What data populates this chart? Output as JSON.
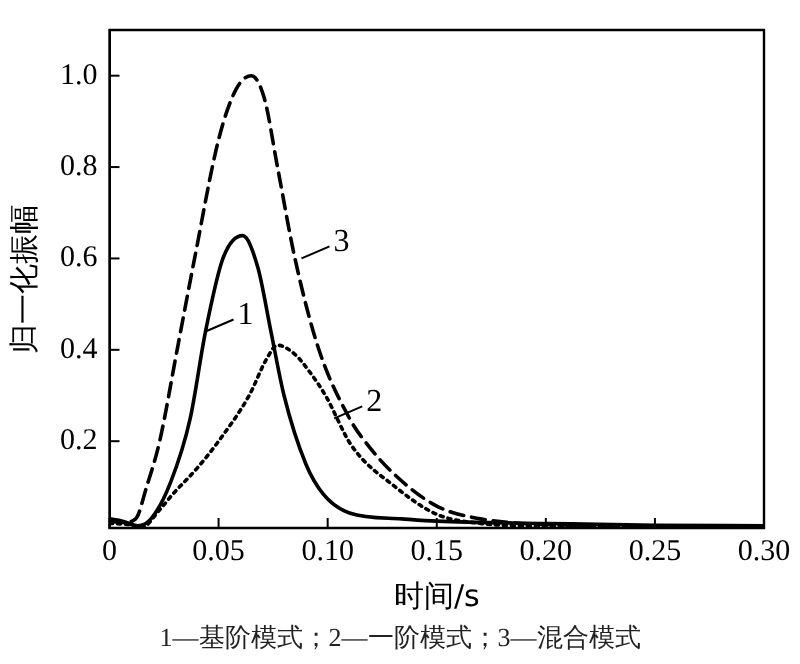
{
  "chart_data": {
    "type": "line",
    "xlabel": "时间/s",
    "ylabel": "归一化振幅",
    "xlim": [
      0,
      0.3
    ],
    "ylim": [
      0.01,
      1.1
    ],
    "xticks": [
      0,
      0.05,
      {
        "value": 0.1,
        "label": "0.10"
      },
      0.15,
      {
        "value": 0.2,
        "label": "0.20"
      },
      0.25,
      {
        "value": 0.3,
        "label": "0.30"
      }
    ],
    "yticks": [
      0.2,
      0.4,
      0.6,
      0.8,
      {
        "value": 1,
        "label": "1.0"
      }
    ],
    "grid": false,
    "legend": false,
    "marker": "none",
    "series": [
      {
        "color": "#000000",
        "line_style": "solid",
        "x": [
          0,
          0.006,
          0.013,
          0.019,
          0.028,
          0.037,
          0.044,
          0.052,
          0.061,
          0.068,
          0.074,
          0.08,
          0.09,
          0.098,
          0.11,
          0.134,
          0.15,
          0.2,
          0.25,
          0.3
        ],
        "values": [
          0.03,
          0.025,
          0.015,
          0.03,
          0.11,
          0.25,
          0.44,
          0.6,
          0.65,
          0.58,
          0.44,
          0.3,
          0.15,
          0.084,
          0.043,
          0.03,
          0.025,
          0.02,
          0.016,
          0.015
        ]
      },
      {
        "color": "#000000",
        "line_style": "dotted",
        "x": [
          0,
          0.008,
          0.015,
          0.023,
          0.029,
          0.04,
          0.05,
          0.064,
          0.072,
          0.077,
          0.085,
          0.092,
          0.099,
          0.111,
          0.131,
          0.15,
          0.17,
          0.2,
          0.25,
          0.3
        ],
        "values": [
          0.02,
          0.018,
          0.012,
          0.05,
          0.084,
          0.14,
          0.2,
          0.3,
          0.38,
          0.41,
          0.39,
          0.35,
          0.3,
          0.19,
          0.1,
          0.04,
          0.02,
          0.014,
          0.013,
          0.012
        ]
      },
      {
        "color": "#000000",
        "line_style": "dashed",
        "x": [
          0,
          0.006,
          0.012,
          0.017,
          0.023,
          0.031,
          0.039,
          0.05,
          0.058,
          0.065,
          0.071,
          0.077,
          0.085,
          0.096,
          0.11,
          0.117,
          0.13,
          0.15,
          0.17,
          0.2,
          0.25,
          0.3
        ],
        "values": [
          0.025,
          0.022,
          0.03,
          0.1,
          0.2,
          0.4,
          0.6,
          0.86,
          0.97,
          1.0,
          0.95,
          0.8,
          0.6,
          0.4,
          0.25,
          0.2,
          0.13,
          0.058,
          0.03,
          0.018,
          0.015,
          0.015
        ]
      }
    ],
    "annotations": [
      {
        "text": "1",
        "x": 0.044,
        "y": 0.44
      },
      {
        "text": "2",
        "x": 0.103,
        "y": 0.25
      },
      {
        "text": "3",
        "x": 0.088,
        "y": 0.6
      },
      "1—基阶模式；2—一阶模式；3—混合模式"
    ]
  }
}
